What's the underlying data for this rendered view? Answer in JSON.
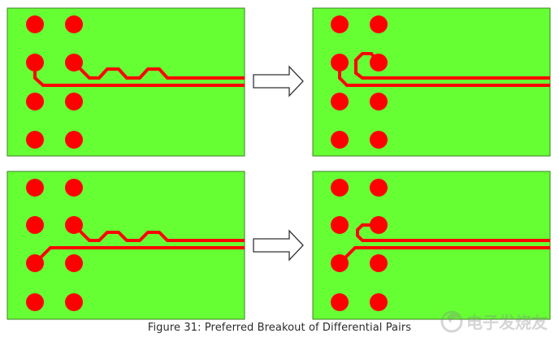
{
  "figure": {
    "caption": "Figure 31: Preferred Breakout of Differential Pairs",
    "panels": [
      {
        "id": "top-left",
        "variant": "before",
        "row": "top"
      },
      {
        "id": "top-right",
        "variant": "after",
        "row": "top"
      },
      {
        "id": "bottom-left",
        "variant": "before",
        "row": "bottom"
      },
      {
        "id": "bottom-right",
        "variant": "after",
        "row": "bottom"
      }
    ],
    "colors": {
      "board": "#66ff33",
      "board_border": "#3f7f2a",
      "copper": "#ff0000",
      "arrow_fill": "#ffffff",
      "arrow_stroke": "#333333"
    }
  },
  "watermark": {
    "text": "电子发烧友",
    "icon": "watermark-logo-icon"
  }
}
